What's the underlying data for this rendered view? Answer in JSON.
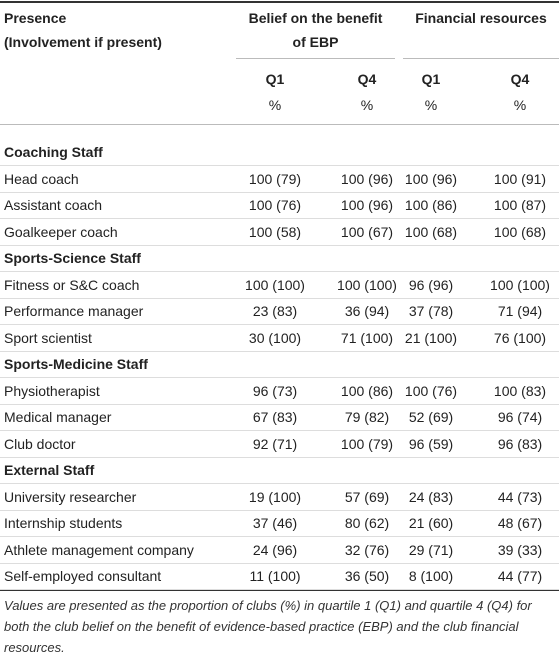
{
  "header": {
    "first_column": [
      "Presence",
      "(Involvement if present)"
    ],
    "groups": [
      {
        "title": [
          "Belief on the benefit",
          "of EBP"
        ],
        "columns": [
          {
            "name": "Q1",
            "unit": "%"
          },
          {
            "name": "Q4",
            "unit": "%"
          }
        ]
      },
      {
        "title": [
          "Financial resources"
        ],
        "columns": [
          {
            "name": "Q1",
            "unit": "%"
          },
          {
            "name": "Q4",
            "unit": "%"
          }
        ]
      }
    ]
  },
  "sections": [
    {
      "title": "Coaching Staff",
      "rows": [
        [
          "Head coach",
          "100 (79)",
          "100 (96)",
          "100 (96)",
          "100 (91)"
        ],
        [
          "Assistant coach",
          "100 (76)",
          "100 (96)",
          "100 (86)",
          "100 (87)"
        ],
        [
          "Goalkeeper coach",
          "100 (58)",
          "100 (67)",
          "100 (68)",
          "100 (68)"
        ]
      ]
    },
    {
      "title": "Sports-Science Staff",
      "rows": [
        [
          "Fitness or S&C coach",
          "100 (100)",
          "100 (100)",
          "96 (96)",
          "100 (100)"
        ],
        [
          "Performance manager",
          "23 (83)",
          "36 (94)",
          "37 (78)",
          "71 (94)"
        ],
        [
          "Sport scientist",
          "30 (100)",
          "71 (100)",
          "21 (100)",
          "76 (100)"
        ]
      ]
    },
    {
      "title": "Sports-Medicine Staff",
      "rows": [
        [
          "Physiotherapist",
          "96 (73)",
          "100 (86)",
          "100 (76)",
          "100 (83)"
        ],
        [
          "Medical manager",
          "67 (83)",
          "79 (82)",
          "52 (69)",
          "96 (74)"
        ],
        [
          "Club doctor",
          "92 (71)",
          "100 (79)",
          "96 (59)",
          "96 (83)"
        ]
      ]
    },
    {
      "title": "External Staff",
      "rows": [
        [
          "University researcher",
          "19 (100)",
          "57 (69)",
          "24 (83)",
          "44 (73)"
        ],
        [
          "Internship students",
          "37 (46)",
          "80 (62)",
          "21 (60)",
          "48 (67)"
        ],
        [
          "Athlete management company",
          "24 (96)",
          "32 (76)",
          "29 (71)",
          "39 (33)"
        ],
        [
          "Self-employed consultant",
          "11 (100)",
          "36 (50)",
          "8 (100)",
          "44 (77)"
        ]
      ]
    }
  ],
  "footnote": "Values are presented as the proportion of clubs (%) in quartile 1 (Q1) and quartile 4 (Q4) for both the club belief on the benefit of evidence-based practice (EBP) and the club financial resources."
}
